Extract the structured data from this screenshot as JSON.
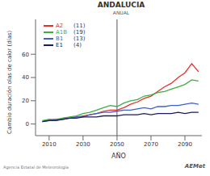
{
  "chart_data": {
    "type": "line",
    "title": "ANDALUCIA",
    "subtitle": "ANUAL",
    "x_label": "AÑO",
    "y_label": "Cambio duración olas de calor (días)",
    "annotations": [
      "Agencia Estatal de Meteorología",
      "AEMet"
    ],
    "x": [
      2006,
      2010,
      2014,
      2018,
      2022,
      2026,
      2030,
      2034,
      2038,
      2042,
      2046,
      2050,
      2054,
      2058,
      2062,
      2066,
      2070,
      2074,
      2078,
      2082,
      2086,
      2090,
      2094,
      2098
    ],
    "series": [
      {
        "name": "A2",
        "count_label": "(11)",
        "color": "#e8302b",
        "values": [
          2,
          4,
          3,
          5,
          5,
          6,
          7,
          8,
          9,
          11,
          12,
          12,
          14,
          17,
          19,
          22,
          24,
          28,
          32,
          35,
          40,
          44,
          52,
          45
        ]
      },
      {
        "name": "A1B",
        "count_label": "(19)",
        "color": "#3cb043",
        "values": [
          3,
          4,
          4,
          5,
          6,
          7,
          9,
          10,
          12,
          14,
          16,
          15,
          18,
          20,
          21,
          24,
          25,
          27,
          28,
          30,
          32,
          34,
          38,
          37
        ]
      },
      {
        "name": "B1",
        "count_label": "(13)",
        "color": "#3f5fd0",
        "values": [
          2,
          3,
          4,
          4,
          5,
          6,
          6,
          8,
          9,
          10,
          10,
          11,
          12,
          12,
          13,
          14,
          13,
          15,
          15,
          16,
          16,
          17,
          18,
          17
        ]
      },
      {
        "name": "E1",
        "count_label": "(4)",
        "color": "#1c1c5c",
        "values": [
          2,
          3,
          3,
          4,
          5,
          5,
          6,
          6,
          6,
          7,
          7,
          7,
          8,
          8,
          8,
          9,
          8,
          9,
          9,
          9,
          10,
          9,
          10,
          10
        ]
      }
    ],
    "xlim": [
      2002,
      2100
    ],
    "xticks": [
      2010,
      2030,
      2050,
      2070,
      2090
    ],
    "ylim": [
      -10,
      90
    ],
    "yticks": [
      0,
      20,
      40,
      60
    ],
    "reference_line_x": 2050,
    "legend": "upper left"
  }
}
